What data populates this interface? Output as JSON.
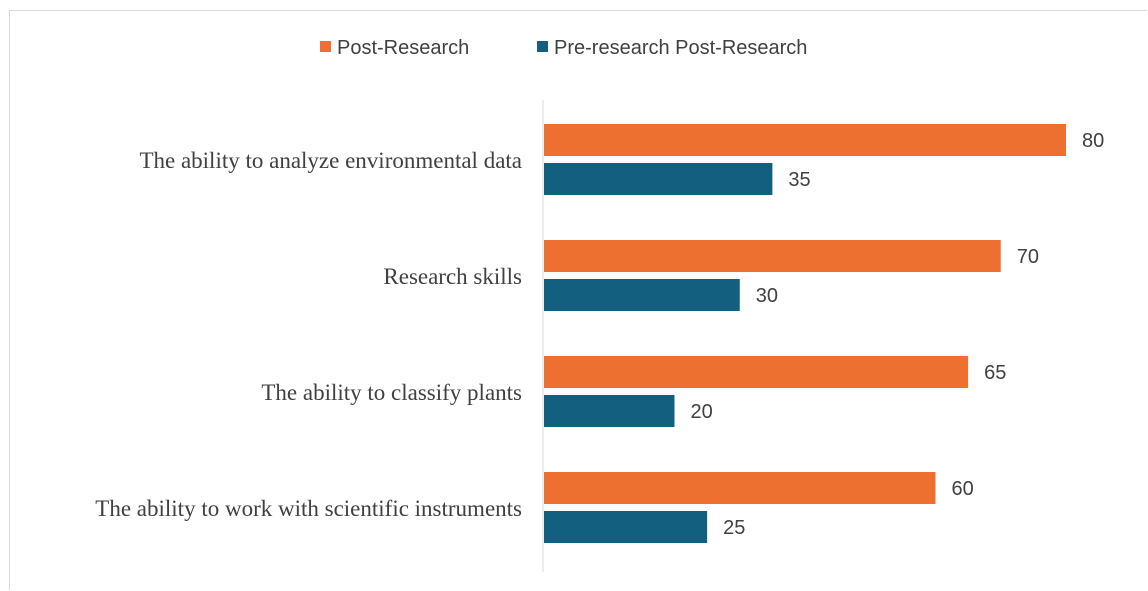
{
  "chart_data": {
    "type": "bar",
    "orientation": "horizontal",
    "categories": [
      "The ability to analyze environmental data",
      "Research skills",
      "The ability to classify plants",
      "The ability to work with scientific instruments"
    ],
    "series": [
      {
        "name": "Post-Research",
        "color": "#ED7031",
        "values": [
          80,
          70,
          65,
          60
        ]
      },
      {
        "name": "Pre-research Post-Research",
        "color": "#135F80",
        "values": [
          35,
          30,
          20,
          25
        ]
      }
    ],
    "xlim": [
      0,
      85
    ],
    "grid": false,
    "legend": "top-center"
  }
}
